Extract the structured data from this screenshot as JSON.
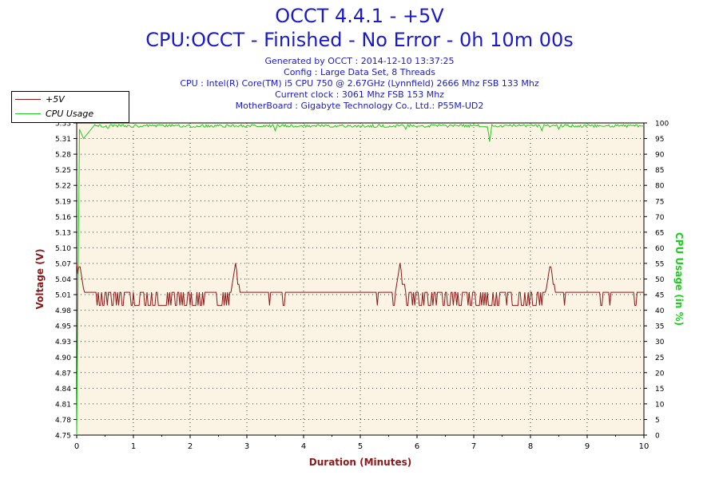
{
  "header": {
    "title": "OCCT 4.4.1 - +5V",
    "subtitle": "CPU:OCCT - Finished - No Error - 0h 10m 00s",
    "info_lines": [
      "Generated by OCCT : 2014-12-10 13:37:25",
      "Config : Large Data Set, 8 Threads",
      "CPU : Intel(R) Core(TM) i5 CPU 750 @ 2.67GHz (Lynnfield) 2666 Mhz FSB 133 Mhz",
      "Current clock : 3061 Mhz FSB 153 Mhz",
      "MotherBoard : Gigabyte Technology Co., Ltd.: P55M-UD2"
    ]
  },
  "colors": {
    "title": "#1a1acc",
    "voltage": "#8b1a1a",
    "usage": "#22cc22",
    "plot_bg": "#fbf3e3",
    "grid": "#444444"
  },
  "chart_data": {
    "type": "line",
    "xlabel": "Duration (Minutes)",
    "ylabel": "Voltage (V)",
    "y2label": "CPU Usage (in %)",
    "xlim": [
      0,
      10
    ],
    "ylim": [
      4.75,
      5.34
    ],
    "y2lim": [
      0,
      100
    ],
    "x_ticks": [
      "0",
      "1",
      "2",
      "3",
      "4",
      "5",
      "6",
      "7",
      "8",
      "9",
      "10"
    ],
    "y_ticks": [
      "4.75",
      "4.78",
      "4.81",
      "4.84",
      "4.87",
      "4.90",
      "4.93",
      "4.95",
      "4.98",
      "5.01",
      "5.04",
      "5.07",
      "5.10",
      "5.13",
      "5.16",
      "5.19",
      "5.22",
      "5.25",
      "5.28",
      "5.31",
      "5.33"
    ],
    "y2_ticks": [
      "0",
      "5",
      "10",
      "15",
      "20",
      "25",
      "30",
      "35",
      "40",
      "45",
      "50",
      "55",
      "60",
      "65",
      "70",
      "75",
      "80",
      "85",
      "90",
      "95",
      "100"
    ],
    "legend_position": "top-left",
    "grid": true,
    "series": [
      {
        "name": "+5V",
        "axis": "left",
        "color": "#8b1a1a",
        "baseline": 5.02,
        "low": 4.995,
        "spike": 5.075,
        "spikes_at": [
          0.05,
          2.8,
          5.7,
          8.35
        ],
        "noisy_ranges": [
          [
            0.35,
            2.35
          ],
          [
            2.45,
            2.7
          ],
          [
            5.55,
            5.65
          ],
          [
            5.8,
            8.2
          ]
        ],
        "isolated_dips": [
          3.4,
          3.65,
          5.3,
          8.6,
          9.25,
          9.4,
          9.85
        ]
      },
      {
        "name": "CPU Usage",
        "axis": "right",
        "color": "#22cc22",
        "start": [
          [
            0,
            0
          ],
          [
            0.05,
            98
          ],
          [
            0.12,
            95
          ],
          [
            0.3,
            99
          ]
        ],
        "plateau": 99.5,
        "dips": [
          [
            0.15,
            96
          ],
          [
            0.55,
            98
          ],
          [
            3.5,
            97.5
          ],
          [
            5.8,
            98
          ],
          [
            7.28,
            94
          ],
          [
            8.2,
            97.5
          ],
          [
            8.5,
            98
          ]
        ]
      }
    ]
  }
}
